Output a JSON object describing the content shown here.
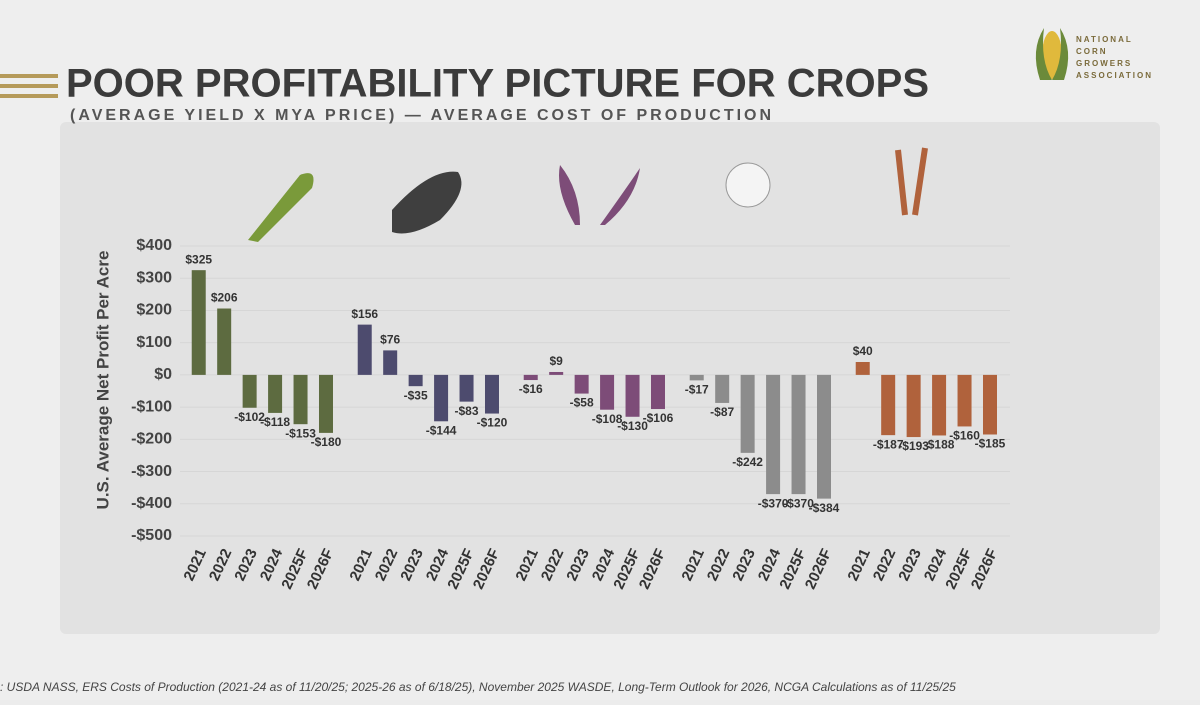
{
  "chart_data": {
    "type": "bar",
    "title": "POOR PROFITABILITY PICTURE FOR CROPS",
    "subtitle": "(AVERAGE YIELD X MYA PRICE) — AVERAGE COST OF PRODUCTION",
    "y_label": "U.S. Average Net Profit Per Acre",
    "logo": "NATIONAL CORN GROWERS ASSOCIATION",
    "source": ": USDA NASS, ERS Costs of Production (2021-24 as of 11/20/25; 2025-26 as of 6/18/25), November 2025 WASDE, Long-Term Outlook for 2026, NCGA Calculations as of 11/25/25",
    "categories": [
      "2021",
      "2022",
      "2023",
      "2024",
      "2025F",
      "2026F"
    ],
    "series": [
      {
        "color": "#5d6b40",
        "values": [
          325,
          206,
          -102,
          -118,
          -153,
          -180
        ],
        "value_labels": [
          "$325",
          "$206",
          "-$102",
          "-$118",
          "-$153",
          "-$180"
        ]
      },
      {
        "color": "#4d4b6e",
        "values": [
          156,
          76,
          -35,
          -144,
          -83,
          -120
        ],
        "value_labels": [
          "$156",
          "$76",
          "-$35",
          "-$144",
          "-$83",
          "-$120"
        ]
      },
      {
        "color": "#7d4c78",
        "values": [
          -16,
          9,
          -58,
          -108,
          -130,
          -106
        ],
        "value_labels": [
          "-$16",
          "$9",
          "-$58",
          "-$108",
          "-$130",
          "-$106"
        ]
      },
      {
        "color": "#8c8c8c",
        "values": [
          -17,
          -87,
          -242,
          -370,
          -370,
          -384
        ],
        "value_labels": [
          "-$17",
          "-$87",
          "-$242",
          "-$370",
          "-$370",
          "-$384"
        ]
      },
      {
        "color": "#b0623c",
        "values": [
          40,
          -187,
          -193,
          -188,
          -160,
          -185
        ],
        "value_labels": [
          "$40",
          "-$187",
          "-$193",
          "-$188",
          "-$160",
          "-$185"
        ]
      }
    ],
    "ylim": [
      -500,
      400
    ],
    "yticks": [
      {
        "value": -500,
        "label": "-$500"
      },
      {
        "value": -400,
        "label": "-$400"
      },
      {
        "value": -300,
        "label": "-$300"
      },
      {
        "value": -200,
        "label": "-$200"
      },
      {
        "value": -100,
        "label": "-$100"
      },
      {
        "value": 0,
        "label": "$0"
      },
      {
        "value": 100,
        "label": "$100"
      },
      {
        "value": 200,
        "label": "$200"
      },
      {
        "value": 300,
        "label": "$300"
      },
      {
        "value": 400,
        "label": "$400"
      }
    ],
    "grid": true
  }
}
